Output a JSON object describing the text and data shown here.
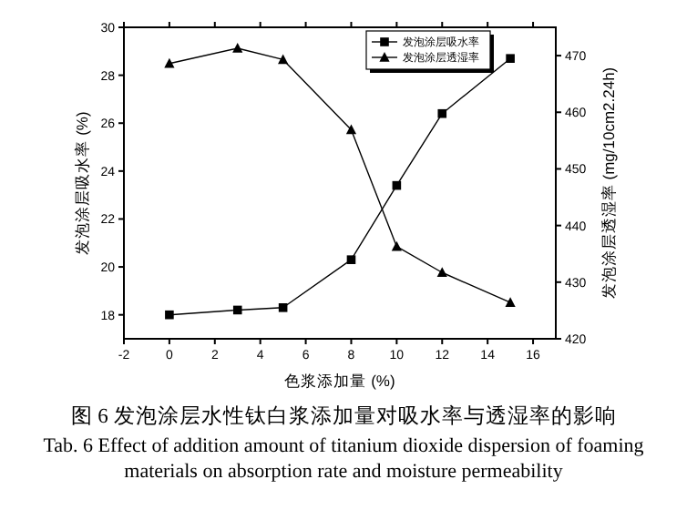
{
  "chart_data": {
    "type": "line",
    "xlabel": "色浆添加量 (%)",
    "ylabel": "发泡涂层吸水率 (%)",
    "y2label": "发泡涂层透湿率 (mg/10cm2.24h)",
    "x": [
      0,
      3,
      5,
      8,
      10,
      12,
      15
    ],
    "series": [
      {
        "name": "发泡涂层吸水率",
        "color": "#000000",
        "marker": "square",
        "values": [
          18.0,
          18.2,
          18.3,
          20.3,
          23.4,
          26.4,
          28.7
        ]
      },
      {
        "name": "发泡涂层透湿率",
        "color": "#000000",
        "marker": "triangle",
        "axis": "y2",
        "values": [
          468.6,
          471.3,
          469.3,
          456.9,
          436.3,
          431.7,
          426.4
        ]
      }
    ],
    "xlim": [
      -2,
      17
    ],
    "xticks": [
      -2,
      0,
      2,
      4,
      6,
      8,
      10,
      12,
      14,
      16
    ],
    "ylim": [
      17,
      30
    ],
    "yticks": [
      18,
      20,
      22,
      24,
      26,
      28,
      30
    ],
    "y2lim": [
      420,
      475
    ],
    "y2ticks": [
      420,
      430,
      440,
      450,
      460,
      470
    ],
    "legend": "top right",
    "grid": false,
    "line_style": "solid",
    "annotations": [
      "图 6   发泡涂层水性钛白浆添加量对吸水率与透湿率的影响",
      "Tab. 6    Effect of addition amount of titanium dioxide dispersion of foaming materials on absorption rate and moisture permeability"
    ]
  }
}
